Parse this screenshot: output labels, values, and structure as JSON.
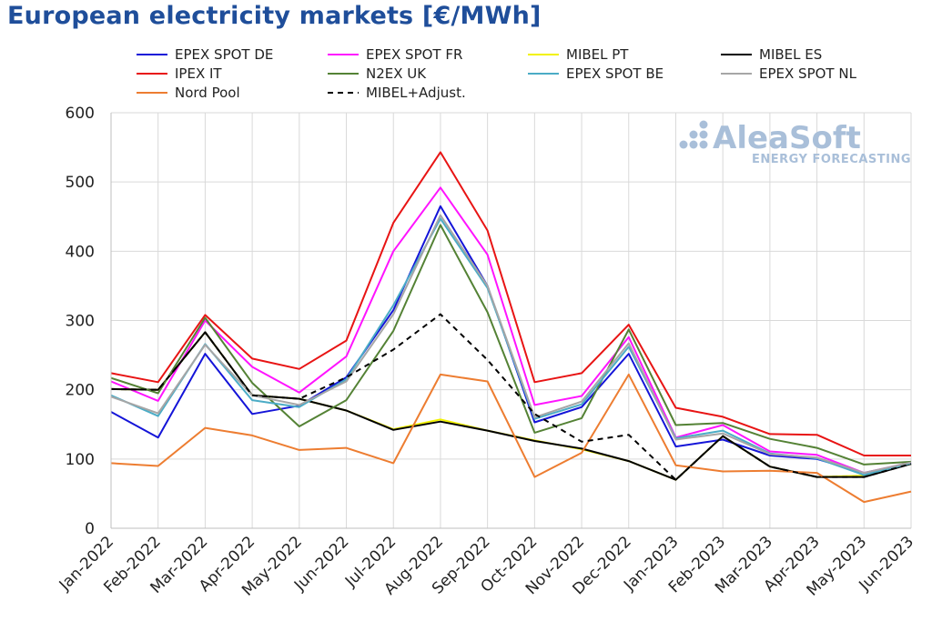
{
  "title": "European electricity markets [€/MWh]",
  "logo": {
    "name": "AleaSoft",
    "tagline": "ENERGY FORECASTING"
  },
  "chart_data": {
    "type": "line",
    "title": "European electricity markets [€/MWh]",
    "xlabel": "",
    "ylabel": "",
    "ylim": [
      0,
      600
    ],
    "yticks": [
      0,
      100,
      200,
      300,
      400,
      500,
      600
    ],
    "grid": true,
    "legend_position": "top",
    "categories": [
      "Jan-2022",
      "Feb-2022",
      "Mar-2022",
      "Apr-2022",
      "May-2022",
      "Jun-2022",
      "Jul-2022",
      "Aug-2022",
      "Sep-2022",
      "Oct-2022",
      "Nov-2022",
      "Dec-2022",
      "Jan-2023",
      "Feb-2023",
      "Mar-2023",
      "Apr-2023",
      "May-2023",
      "Jun-2023"
    ],
    "series": [
      {
        "name": "EPEX SPOT DE",
        "color": "#1414d8",
        "dash": false,
        "values": [
          168,
          131,
          252,
          165,
          177,
          218,
          315,
          465,
          350,
          153,
          175,
          252,
          118,
          128,
          105,
          100,
          80,
          94
        ]
      },
      {
        "name": "EPEX SPOT FR",
        "color": "#ff14ff",
        "dash": false,
        "values": [
          212,
          184,
          300,
          233,
          196,
          248,
          400,
          492,
          395,
          178,
          191,
          276,
          131,
          149,
          111,
          106,
          80,
          95
        ]
      },
      {
        "name": "MIBEL PT",
        "color": "#f2f200",
        "dash": false,
        "values": [
          201,
          200,
          283,
          192,
          187,
          170,
          143,
          157,
          141,
          127,
          114,
          97,
          70,
          133,
          89,
          74,
          76,
          93
        ]
      },
      {
        "name": "MIBEL ES",
        "color": "#000000",
        "dash": false,
        "values": [
          201,
          200,
          283,
          192,
          187,
          170,
          142,
          154,
          141,
          126,
          115,
          97,
          70,
          133,
          89,
          74,
          74,
          93
        ]
      },
      {
        "name": "IPEX IT",
        "color": "#e81414",
        "dash": false,
        "values": [
          224,
          211,
          308,
          245,
          230,
          271,
          441,
          543,
          430,
          211,
          224,
          294,
          174,
          161,
          136,
          135,
          105,
          105
        ]
      },
      {
        "name": "N2EX UK",
        "color": "#548235",
        "dash": false,
        "values": [
          217,
          195,
          304,
          210,
          147,
          185,
          285,
          438,
          312,
          138,
          159,
          287,
          149,
          152,
          129,
          116,
          92,
          96
        ]
      },
      {
        "name": "EPEX SPOT BE",
        "color": "#4bacc6",
        "dash": false,
        "values": [
          192,
          162,
          266,
          185,
          175,
          215,
          322,
          447,
          347,
          158,
          179,
          262,
          130,
          141,
          108,
          101,
          77,
          94
        ]
      },
      {
        "name": "EPEX SPOT NL",
        "color": "#a6a6a6",
        "dash": false,
        "values": [
          190,
          166,
          265,
          192,
          178,
          212,
          309,
          452,
          350,
          160,
          183,
          267,
          128,
          137,
          107,
          102,
          80,
          95
        ]
      },
      {
        "name": "Nord Pool",
        "color": "#ed7d31",
        "dash": false,
        "values": [
          94,
          90,
          145,
          134,
          113,
          116,
          94,
          222,
          212,
          74,
          109,
          222,
          91,
          82,
          83,
          80,
          38,
          53
        ]
      },
      {
        "name": "MIBEL+Adjust.",
        "color": "#000000",
        "dash": true,
        "values": [
          201,
          200,
          283,
          192,
          187,
          218,
          258,
          309,
          243,
          165,
          125,
          135,
          70,
          133,
          89,
          74,
          74,
          93
        ]
      }
    ]
  }
}
